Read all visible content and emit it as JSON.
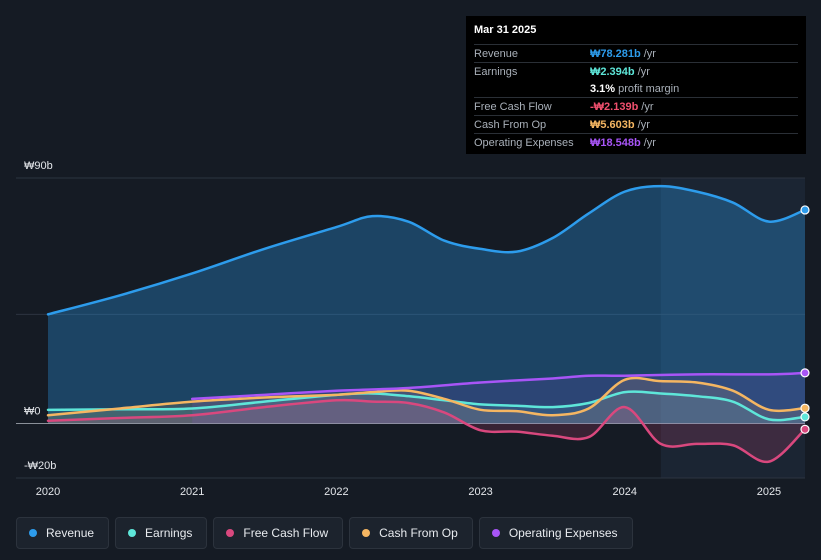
{
  "tooltip": {
    "date": "Mar 31 2025",
    "rows": [
      {
        "label": "Revenue",
        "value": "₩78.281b",
        "unit": "/yr",
        "color": "#2d9cec"
      },
      {
        "label": "Earnings",
        "value": "₩2.394b",
        "unit": "/yr",
        "color": "#5ee6d9"
      },
      {
        "label": "",
        "value": "3.1%",
        "unit": "profit margin",
        "color": "#ffffff"
      },
      {
        "label": "Free Cash Flow",
        "value": "-₩2.139b",
        "unit": "/yr",
        "color": "#f0506e"
      },
      {
        "label": "Cash From Op",
        "value": "₩5.603b",
        "unit": "/yr",
        "color": "#f5b662"
      },
      {
        "label": "Operating Expenses",
        "value": "₩18.548b",
        "unit": "/yr",
        "color": "#a855f7"
      }
    ]
  },
  "chart_data": {
    "type": "area",
    "y_tick_labels": [
      "₩90b",
      "₩0",
      "-₩20b"
    ],
    "x_tick_labels": [
      "2020",
      "2021",
      "2022",
      "2023",
      "2024",
      "2025"
    ],
    "ylim": [
      -20,
      90
    ],
    "xlim": [
      2020.0,
      2025.25
    ],
    "grid": true,
    "legend_position": "bottom",
    "highlight_start": 2024.25,
    "series": [
      {
        "name": "Revenue",
        "color": "#2d9cec",
        "points": [
          [
            2020.0,
            40
          ],
          [
            2020.5,
            47
          ],
          [
            2021.0,
            55
          ],
          [
            2021.5,
            64
          ],
          [
            2022.0,
            72
          ],
          [
            2022.25,
            76
          ],
          [
            2022.5,
            74
          ],
          [
            2022.75,
            67
          ],
          [
            2023.0,
            64
          ],
          [
            2023.25,
            63
          ],
          [
            2023.5,
            68
          ],
          [
            2023.75,
            77
          ],
          [
            2024.0,
            85
          ],
          [
            2024.25,
            87
          ],
          [
            2024.5,
            85
          ],
          [
            2024.75,
            81
          ],
          [
            2025.0,
            74
          ],
          [
            2025.25,
            78.281
          ]
        ]
      },
      {
        "name": "Earnings",
        "color": "#5ee6d9",
        "points": [
          [
            2020.0,
            5
          ],
          [
            2020.5,
            5.2
          ],
          [
            2021.0,
            5.5
          ],
          [
            2021.5,
            8
          ],
          [
            2022.0,
            10.5
          ],
          [
            2022.25,
            11
          ],
          [
            2022.5,
            10
          ],
          [
            2022.75,
            8.5
          ],
          [
            2023.0,
            7
          ],
          [
            2023.25,
            6.5
          ],
          [
            2023.5,
            6
          ],
          [
            2023.75,
            7.5
          ],
          [
            2024.0,
            11.5
          ],
          [
            2024.25,
            11
          ],
          [
            2024.5,
            10
          ],
          [
            2024.75,
            8
          ],
          [
            2025.0,
            1.5
          ],
          [
            2025.25,
            2.394
          ]
        ]
      },
      {
        "name": "Free Cash Flow",
        "color": "#d9487e",
        "points": [
          [
            2020.0,
            1
          ],
          [
            2020.5,
            2
          ],
          [
            2021.0,
            3
          ],
          [
            2021.5,
            6
          ],
          [
            2022.0,
            8.5
          ],
          [
            2022.25,
            8
          ],
          [
            2022.5,
            7.5
          ],
          [
            2022.75,
            4
          ],
          [
            2023.0,
            -2.5
          ],
          [
            2023.25,
            -3
          ],
          [
            2023.5,
            -4.5
          ],
          [
            2023.75,
            -5
          ],
          [
            2024.0,
            6
          ],
          [
            2024.25,
            -7.5
          ],
          [
            2024.5,
            -7.5
          ],
          [
            2024.75,
            -8
          ],
          [
            2025.0,
            -14
          ],
          [
            2025.25,
            -2.139
          ]
        ]
      },
      {
        "name": "Cash From Op",
        "color": "#f5b662",
        "points": [
          [
            2020.0,
            3
          ],
          [
            2020.5,
            5.5
          ],
          [
            2021.0,
            8
          ],
          [
            2021.5,
            9.5
          ],
          [
            2022.0,
            10.5
          ],
          [
            2022.25,
            11.5
          ],
          [
            2022.5,
            12
          ],
          [
            2022.75,
            9
          ],
          [
            2023.0,
            5
          ],
          [
            2023.25,
            4.5
          ],
          [
            2023.5,
            3
          ],
          [
            2023.75,
            5.5
          ],
          [
            2024.0,
            16
          ],
          [
            2024.25,
            15.5
          ],
          [
            2024.5,
            15
          ],
          [
            2024.75,
            12
          ],
          [
            2025.0,
            5
          ],
          [
            2025.25,
            5.603
          ]
        ]
      },
      {
        "name": "Operating Expenses",
        "color": "#a855f7",
        "points": [
          [
            2021.0,
            9
          ],
          [
            2021.5,
            10.5
          ],
          [
            2022.0,
            12
          ],
          [
            2022.5,
            13
          ],
          [
            2023.0,
            15
          ],
          [
            2023.5,
            16.5
          ],
          [
            2023.75,
            17.5
          ],
          [
            2024.0,
            17.5
          ],
          [
            2024.5,
            18
          ],
          [
            2025.0,
            18
          ],
          [
            2025.25,
            18.548
          ]
        ]
      }
    ]
  },
  "legend": [
    {
      "label": "Revenue",
      "color": "#2d9cec"
    },
    {
      "label": "Earnings",
      "color": "#5ee6d9"
    },
    {
      "label": "Free Cash Flow",
      "color": "#d9487e"
    },
    {
      "label": "Cash From Op",
      "color": "#f5b662"
    },
    {
      "label": "Operating Expenses",
      "color": "#a855f7"
    }
  ]
}
